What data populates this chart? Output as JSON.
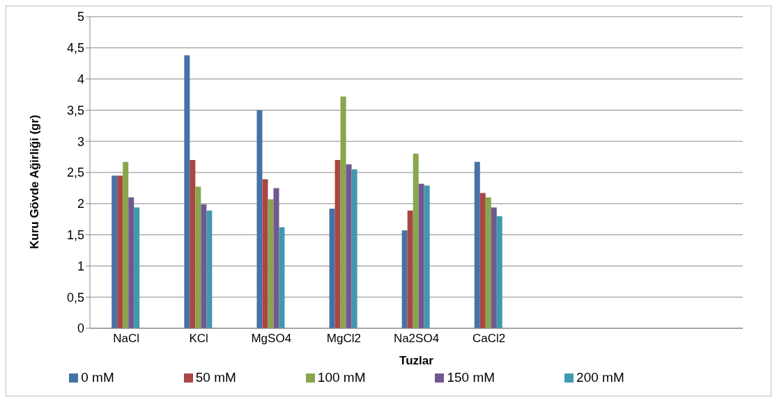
{
  "chart_data": {
    "type": "bar",
    "xlabel": "Tuzlar",
    "ylabel": "Kuru Gövde Ağirliği (gr)",
    "categories": [
      "NaCl",
      "KCl",
      "MgSO4",
      "MgCl2",
      "Na2SO4",
      "CaCl2",
      null,
      null,
      null
    ],
    "series": [
      {
        "name": "0 mM",
        "color": "#4572a7",
        "values": [
          2.45,
          4.38,
          3.5,
          1.92,
          1.57,
          2.67,
          null,
          null,
          null
        ]
      },
      {
        "name": "50 mM",
        "color": "#aa4643",
        "values": [
          2.45,
          2.7,
          2.39,
          2.7,
          1.89,
          2.17,
          null,
          null,
          null
        ]
      },
      {
        "name": "100 mM",
        "color": "#89a54e",
        "values": [
          2.67,
          2.27,
          2.07,
          3.72,
          2.8,
          2.1,
          null,
          null,
          null
        ]
      },
      {
        "name": "150 mM",
        "color": "#71588f",
        "values": [
          2.1,
          1.99,
          2.25,
          2.63,
          2.32,
          1.94,
          null,
          null,
          null
        ]
      },
      {
        "name": "200 mM",
        "color": "#4198af",
        "values": [
          1.94,
          1.89,
          1.62,
          2.55,
          2.29,
          1.8,
          null,
          null,
          null
        ]
      }
    ],
    "ylim": [
      0,
      5
    ],
    "yticks": [
      0,
      {
        "value": 0.5,
        "label": "0,5"
      },
      1,
      {
        "value": 1.5,
        "label": "1,5"
      },
      2,
      {
        "value": 2.5,
        "label": "2,5"
      },
      3,
      {
        "value": 3.5,
        "label": "3,5"
      },
      4,
      {
        "value": 4.5,
        "label": "4,5"
      },
      5
    ],
    "grid": "y",
    "legend": "bottom"
  }
}
